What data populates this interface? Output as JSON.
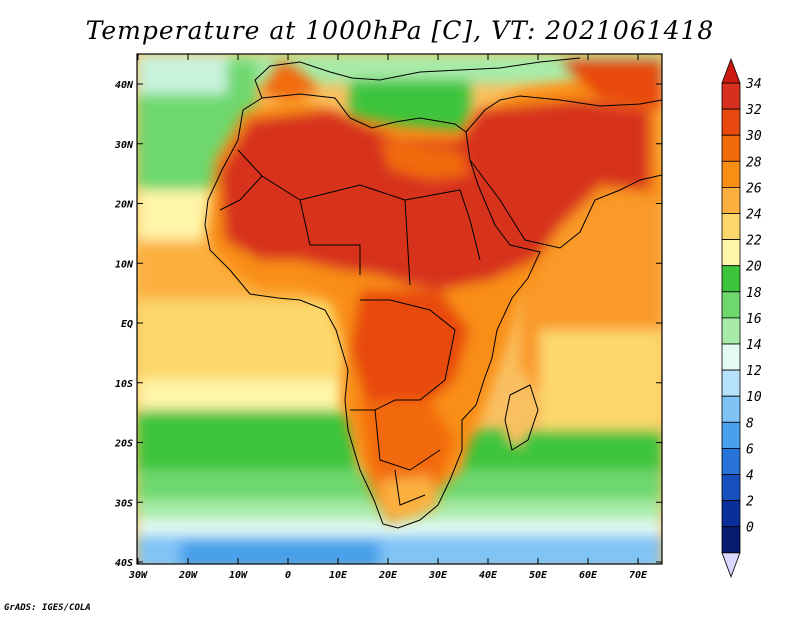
{
  "title": "Temperature at 1000hPa [C], VT: 2021061418",
  "credit": "GrADS: IGES/COLA",
  "lat_labels": [
    "40N",
    "30N",
    "20N",
    "10N",
    "EQ",
    "10S",
    "20S",
    "30S",
    "40S"
  ],
  "lon_labels": [
    "30W",
    "20W",
    "10W",
    "0",
    "10E",
    "20E",
    "30E",
    "40E",
    "50E",
    "60E",
    "70E"
  ],
  "colorbar": {
    "levels": [
      "34",
      "32",
      "30",
      "28",
      "26",
      "24",
      "22",
      "20",
      "18",
      "16",
      "14",
      "12",
      "10",
      "8",
      "6",
      "4",
      "2",
      "0"
    ],
    "colors": [
      "#d7301f",
      "#e8490f",
      "#f26b0a",
      "#f98e14",
      "#fbb040",
      "#fcd86c",
      "#fff5a8",
      "#3cc43c",
      "#6ed86e",
      "#a8eba8",
      "#e4fbf4",
      "#b6e2fb",
      "#80c4f6",
      "#4aa0ea",
      "#2874d8",
      "#1550bc",
      "#0a2e9a",
      "#071c70"
    ],
    "top_color": "#cc1a0e",
    "bottom_color": "#d8d8ff"
  }
}
